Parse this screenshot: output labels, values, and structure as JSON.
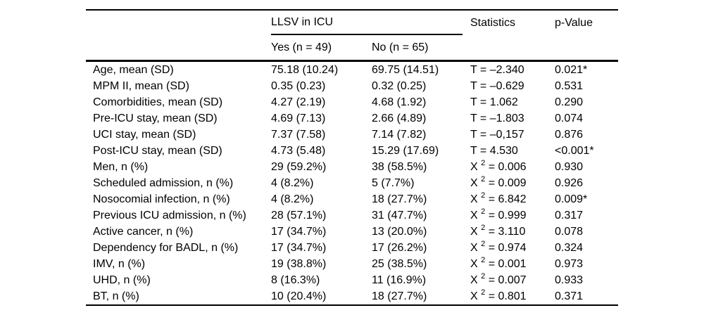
{
  "colors": {
    "text": "#000000",
    "background": "#ffffff",
    "rule": "#000000"
  },
  "table": {
    "header": {
      "group_label": "LLSV in ICU",
      "col_yes": "Yes (n = 49)",
      "col_no": "No (n = 65)",
      "col_stats": "Statistics",
      "col_p": "p-Value"
    },
    "rows": [
      {
        "label": "Age, mean (SD)",
        "yes": "75.18 (10.24)",
        "no": "69.75 (14.51)",
        "stat_type": "T",
        "stat_value": "–2.340",
        "p": "0.021*"
      },
      {
        "label": "MPM II, mean (SD)",
        "yes": "0.35 (0.23)",
        "no": "0.32 (0.25)",
        "stat_type": "T",
        "stat_value": "–0.629",
        "p": "0.531"
      },
      {
        "label": "Comorbidities, mean (SD)",
        "yes": "4.27 (2.19)",
        "no": "4.68 (1.92)",
        "stat_type": "T",
        "stat_value": "1.062",
        "p": "0.290"
      },
      {
        "label": "Pre-ICU stay, mean (SD)",
        "yes": "4.69 (7.13)",
        "no": "2.66 (4.89)",
        "stat_type": "T",
        "stat_value": "–1.803",
        "p": "0.074"
      },
      {
        "label": "UCI stay, mean (SD)",
        "yes": "7.37 (7.58)",
        "no": "7.14 (7.82)",
        "stat_type": "T",
        "stat_value": "–0,157",
        "p": "0.876"
      },
      {
        "label": "Post-ICU stay, mean (SD)",
        "yes": "4.73 (5.48)",
        "no": "15.29 (17.69)",
        "stat_type": "T",
        "stat_value": "4.530",
        "p": "<0.001*"
      },
      {
        "label": "Men, n (%)",
        "yes": "29 (59.2%)",
        "no": "38 (58.5%)",
        "stat_type": "X2",
        "stat_value": "0.006",
        "p": "0.930"
      },
      {
        "label": "Scheduled admission, n (%)",
        "yes": "4 (8.2%)",
        "no": "5 (7.7%)",
        "stat_type": "X2",
        "stat_value": "0.009",
        "p": "0.926"
      },
      {
        "label": "Nosocomial infection, n (%)",
        "yes": "4 (8.2%)",
        "no": "18 (27.7%)",
        "stat_type": "X2",
        "stat_value": "6.842",
        "p": "0.009*"
      },
      {
        "label": "Previous ICU admission, n (%)",
        "yes": "28 (57.1%)",
        "no": "31 (47.7%)",
        "stat_type": "X2",
        "stat_value": "0.999",
        "p": "0.317"
      },
      {
        "label": "Active cancer, n (%)",
        "yes": "17 (34.7%)",
        "no": "13 (20.0%)",
        "stat_type": "X2",
        "stat_value": "3.110",
        "p": "0.078"
      },
      {
        "label": "Dependency for BADL, n (%)",
        "yes": "17 (34.7%)",
        "no": "17 (26.2%)",
        "stat_type": "X2",
        "stat_value": "0.974",
        "p": "0.324"
      },
      {
        "label": "IMV, n (%)",
        "yes": "19 (38.8%)",
        "no": "25 (38.5%)",
        "stat_type": "X2",
        "stat_value": "0.001",
        "p": "0.973"
      },
      {
        "label": "UHD, n (%)",
        "yes": "8 (16.3%)",
        "no": "11 (16.9%)",
        "stat_type": "X2",
        "stat_value": "0.007",
        "p": "0.933"
      },
      {
        "label": "BT, n (%)",
        "yes": "10 (20.4%)",
        "no": "18 (27.7%)",
        "stat_type": "X2",
        "stat_value": "0.801",
        "p": "0.371"
      }
    ]
  }
}
